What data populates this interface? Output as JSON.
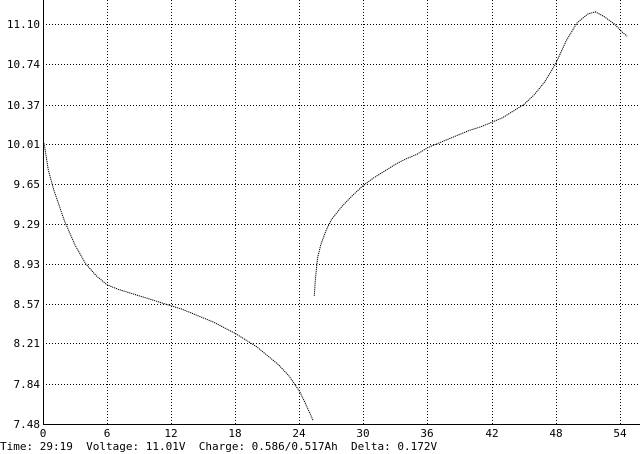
{
  "chart_data": {
    "type": "line",
    "title": "",
    "xlabel": "",
    "ylabel": "",
    "xlim": [
      0,
      55
    ],
    "ylim": [
      7.48,
      11.46
    ],
    "x_ticks": [
      0,
      6,
      12,
      18,
      24,
      30,
      36,
      42,
      48,
      54
    ],
    "y_ticks": [
      7.48,
      7.84,
      8.21,
      8.57,
      8.93,
      9.29,
      9.65,
      10.01,
      10.37,
      10.74,
      11.1
    ],
    "y_tick_labels": [
      "7.48",
      "7.84",
      "8.21",
      "8.57",
      "8.93",
      "9.29",
      "9.65",
      "10.01",
      "10.37",
      "10.74",
      "11.10"
    ],
    "grid": true,
    "series": [
      {
        "values_xy": [
          [
            0.1,
            10.02
          ],
          [
            0.5,
            9.78
          ],
          [
            1.0,
            9.6
          ],
          [
            2.0,
            9.32
          ],
          [
            3.0,
            9.1
          ],
          [
            4.0,
            8.93
          ],
          [
            5.0,
            8.82
          ],
          [
            6.0,
            8.74
          ],
          [
            7.0,
            8.7
          ],
          [
            8.0,
            8.67
          ],
          [
            9.0,
            8.64
          ],
          [
            10.0,
            8.61
          ],
          [
            11.0,
            8.58
          ],
          [
            12.0,
            8.55
          ],
          [
            13.0,
            8.52
          ],
          [
            14.0,
            8.48
          ],
          [
            15.0,
            8.44
          ],
          [
            16.0,
            8.4
          ],
          [
            17.0,
            8.35
          ],
          [
            18.0,
            8.3
          ],
          [
            19.0,
            8.24
          ],
          [
            20.0,
            8.18
          ],
          [
            21.0,
            8.1
          ],
          [
            22.0,
            8.02
          ],
          [
            23.0,
            7.92
          ],
          [
            24.0,
            7.78
          ],
          [
            24.5,
            7.68
          ],
          [
            25.3,
            7.51
          ]
        ]
      },
      {
        "values_xy": [
          [
            25.4,
            8.64
          ],
          [
            25.5,
            8.78
          ],
          [
            25.7,
            8.98
          ],
          [
            26.0,
            9.1
          ],
          [
            26.5,
            9.23
          ],
          [
            27.0,
            9.33
          ],
          [
            28.0,
            9.45
          ],
          [
            29.0,
            9.55
          ],
          [
            30.0,
            9.64
          ],
          [
            31.0,
            9.71
          ],
          [
            32.0,
            9.77
          ],
          [
            33.0,
            9.83
          ],
          [
            34.0,
            9.88
          ],
          [
            35.0,
            9.92
          ],
          [
            36.0,
            9.98
          ],
          [
            37.0,
            10.02
          ],
          [
            38.0,
            10.06
          ],
          [
            39.0,
            10.1
          ],
          [
            40.0,
            10.14
          ],
          [
            41.0,
            10.17
          ],
          [
            42.0,
            10.21
          ],
          [
            43.0,
            10.25
          ],
          [
            44.0,
            10.31
          ],
          [
            45.0,
            10.37
          ],
          [
            46.0,
            10.46
          ],
          [
            47.0,
            10.58
          ],
          [
            48.0,
            10.74
          ],
          [
            49.0,
            10.95
          ],
          [
            50.0,
            11.11
          ],
          [
            51.0,
            11.19
          ],
          [
            51.7,
            11.21
          ],
          [
            52.5,
            11.17
          ],
          [
            53.5,
            11.1
          ],
          [
            54.3,
            11.02
          ],
          [
            54.7,
            10.99
          ]
        ]
      }
    ]
  },
  "status": {
    "time": "Time: 29:19",
    "voltage": "Voltage: 11.01V",
    "charge": "Charge: 0.586/0.517Ah",
    "delta": "Delta: 0.172V"
  }
}
